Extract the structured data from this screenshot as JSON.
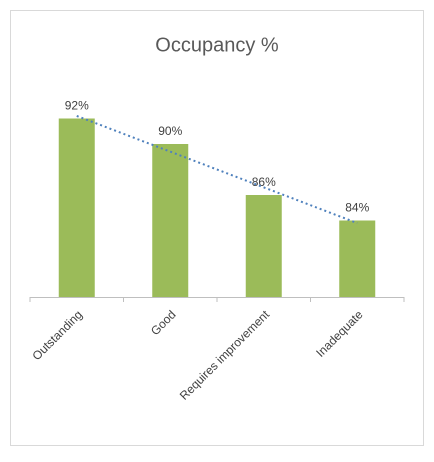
{
  "chart_data": {
    "type": "bar",
    "title": "Occupancy %",
    "categories": [
      "Outstanding",
      "Good",
      "Requires improvement",
      "Inadequate"
    ],
    "values": [
      92,
      90,
      86,
      84
    ],
    "value_labels": [
      "92%",
      "90%",
      "86%",
      "84%"
    ],
    "color": "#9bbb59",
    "ylim": [
      78,
      94
    ],
    "trendline": {
      "kind": "linear",
      "color": "#4f81bd"
    }
  }
}
